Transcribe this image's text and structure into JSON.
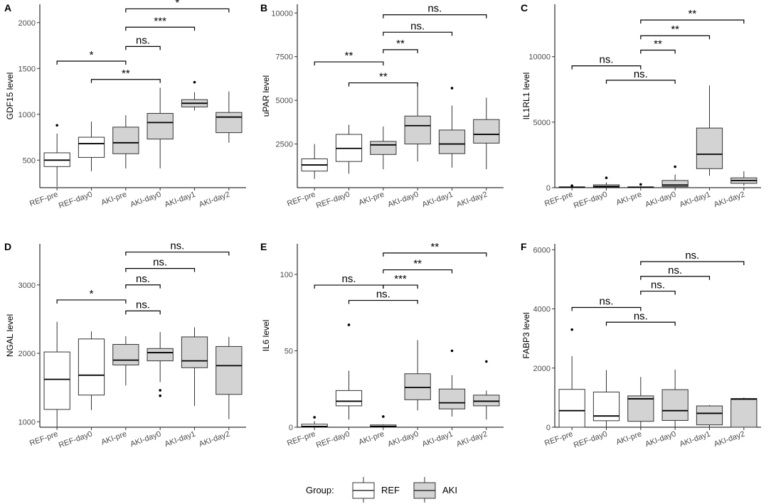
{
  "legend": {
    "title": "Group:",
    "items": [
      {
        "label": "REF",
        "fill": "#ffffff"
      },
      {
        "label": "AKI",
        "fill": "#d3d3d3"
      }
    ]
  },
  "colors": {
    "REF": "#ffffff",
    "AKI": "#d3d3d3",
    "line": "#333333"
  },
  "chart_data": [
    {
      "panel": "A",
      "type": "boxplot",
      "ylabel": "GDF15 level",
      "categories": [
        "REF-pre",
        "REF-day0",
        "AKI-pre",
        "AKI-day0",
        "AKI-day1",
        "AKI-day2"
      ],
      "groups": [
        "REF",
        "REF",
        "AKI",
        "AKI",
        "AKI",
        "AKI"
      ],
      "ylim": [
        200,
        2200
      ],
      "yticks": [
        500,
        1000,
        1500,
        2000
      ],
      "boxes": [
        {
          "min": 210,
          "q1": 430,
          "median": 500,
          "q3": 580,
          "max": 790,
          "outliers": [
            880
          ]
        },
        {
          "min": 380,
          "q1": 530,
          "median": 680,
          "q3": 750,
          "max": 920,
          "outliers": []
        },
        {
          "min": 410,
          "q1": 570,
          "median": 690,
          "q3": 860,
          "max": 990,
          "outliers": []
        },
        {
          "min": 410,
          "q1": 730,
          "median": 910,
          "q3": 1010,
          "max": 1290,
          "outliers": []
        },
        {
          "min": 1040,
          "q1": 1080,
          "median": 1120,
          "q3": 1160,
          "max": 1240,
          "outliers": [
            1350
          ]
        },
        {
          "min": 690,
          "q1": 800,
          "median": 970,
          "q3": 1020,
          "max": 1250,
          "outliers": []
        }
      ],
      "comparisons": [
        {
          "from": 0,
          "to": 2,
          "y": 1580,
          "label": "*"
        },
        {
          "from": 1,
          "to": 3,
          "y": 1380,
          "label": "**"
        },
        {
          "from": 2,
          "to": 3,
          "y": 1740,
          "label": "ns."
        },
        {
          "from": 2,
          "to": 4,
          "y": 1950,
          "label": "***"
        },
        {
          "from": 2,
          "to": 5,
          "y": 2150,
          "label": "*"
        }
      ]
    },
    {
      "panel": "B",
      "type": "boxplot",
      "ylabel": "uPAR level",
      "categories": [
        "REF-pre",
        "REF-day0",
        "AKI-pre",
        "AKI-day0",
        "AKI-day1",
        "AKI-day2"
      ],
      "groups": [
        "REF",
        "REF",
        "AKI",
        "AKI",
        "AKI",
        "AKI"
      ],
      "ylim": [
        0,
        10500
      ],
      "yticks": [
        2500,
        5000,
        7500,
        10000
      ],
      "boxes": [
        {
          "min": 500,
          "q1": 950,
          "median": 1300,
          "q3": 1650,
          "max": 2500,
          "outliers": []
        },
        {
          "min": 800,
          "q1": 1500,
          "median": 2250,
          "q3": 3050,
          "max": 3600,
          "outliers": []
        },
        {
          "min": 1050,
          "q1": 1900,
          "median": 2450,
          "q3": 2650,
          "max": 3500,
          "outliers": []
        },
        {
          "min": 1500,
          "q1": 2500,
          "median": 3550,
          "q3": 4100,
          "max": 6000,
          "outliers": []
        },
        {
          "min": 1150,
          "q1": 1950,
          "median": 2500,
          "q3": 3300,
          "max": 4700,
          "outliers": [
            5700
          ]
        },
        {
          "min": 1050,
          "q1": 2550,
          "median": 3050,
          "q3": 3900,
          "max": 5150,
          "outliers": []
        }
      ],
      "comparisons": [
        {
          "from": 0,
          "to": 2,
          "y": 7200,
          "label": "**"
        },
        {
          "from": 1,
          "to": 3,
          "y": 6000,
          "label": "**"
        },
        {
          "from": 2,
          "to": 3,
          "y": 7900,
          "label": "**"
        },
        {
          "from": 2,
          "to": 4,
          "y": 8900,
          "label": "ns."
        },
        {
          "from": 2,
          "to": 5,
          "y": 9900,
          "label": "ns."
        }
      ]
    },
    {
      "panel": "C",
      "type": "boxplot",
      "ylabel": "IL1RL1 level",
      "categories": [
        "REF-pre",
        "REF-day0",
        "AKI-pre",
        "AKI-day0",
        "AKI-day1",
        "AKI-day2"
      ],
      "groups": [
        "REF",
        "REF",
        "AKI",
        "AKI",
        "AKI",
        "AKI"
      ],
      "ylim": [
        0,
        14000
      ],
      "yticks": [
        0,
        5000,
        10000
      ],
      "boxes": [
        {
          "min": 0,
          "q1": 10,
          "median": 30,
          "q3": 60,
          "max": 100,
          "outliers": [
            150
          ]
        },
        {
          "min": 0,
          "q1": 50,
          "median": 100,
          "q3": 220,
          "max": 400,
          "outliers": [
            750
          ]
        },
        {
          "min": 0,
          "q1": 10,
          "median": 30,
          "q3": 60,
          "max": 120,
          "outliers": [
            250
          ]
        },
        {
          "min": 0,
          "q1": 80,
          "median": 200,
          "q3": 550,
          "max": 1000,
          "outliers": [
            1600
          ]
        },
        {
          "min": 900,
          "q1": 1450,
          "median": 2550,
          "q3": 4550,
          "max": 7800,
          "outliers": []
        },
        {
          "min": 150,
          "q1": 330,
          "median": 550,
          "q3": 750,
          "max": 1250,
          "outliers": []
        }
      ],
      "comparisons": [
        {
          "from": 0,
          "to": 2,
          "y": 9300,
          "label": "ns."
        },
        {
          "from": 1,
          "to": 3,
          "y": 8200,
          "label": "ns."
        },
        {
          "from": 2,
          "to": 3,
          "y": 10500,
          "label": "**"
        },
        {
          "from": 2,
          "to": 4,
          "y": 11600,
          "label": "**"
        },
        {
          "from": 2,
          "to": 5,
          "y": 12800,
          "label": "**"
        }
      ]
    },
    {
      "panel": "D",
      "type": "boxplot",
      "ylabel": "NGAL level",
      "categories": [
        "REF-pre",
        "REF-day0",
        "AKI-pre",
        "AKI-day0",
        "AKI-day1",
        "AKI-day2"
      ],
      "groups": [
        "REF",
        "REF",
        "AKI",
        "AKI",
        "AKI",
        "AKI"
      ],
      "ylim": [
        920,
        3600
      ],
      "yticks": [
        1000,
        2000,
        3000
      ],
      "boxes": [
        {
          "min": 920,
          "q1": 1180,
          "median": 1620,
          "q3": 2020,
          "max": 2460,
          "outliers": []
        },
        {
          "min": 1170,
          "q1": 1390,
          "median": 1680,
          "q3": 2210,
          "max": 2320,
          "outliers": []
        },
        {
          "min": 1530,
          "q1": 1830,
          "median": 1900,
          "q3": 2130,
          "max": 2250,
          "outliers": []
        },
        {
          "min": 1580,
          "q1": 1890,
          "median": 2010,
          "q3": 2070,
          "max": 2310,
          "outliers": [
            1460,
            1380
          ]
        },
        {
          "min": 1230,
          "q1": 1790,
          "median": 1890,
          "q3": 2240,
          "max": 2380,
          "outliers": []
        },
        {
          "min": 1040,
          "q1": 1400,
          "median": 1820,
          "q3": 2100,
          "max": 2240,
          "outliers": []
        }
      ],
      "comparisons": [
        {
          "from": 0,
          "to": 2,
          "y": 2780,
          "label": "*"
        },
        {
          "from": 2,
          "to": 3,
          "y": 2620,
          "label": "ns."
        },
        {
          "from": 2,
          "to": 3,
          "y": 3000,
          "label": "ns."
        },
        {
          "from": 2,
          "to": 4,
          "y": 3240,
          "label": "ns."
        },
        {
          "from": 2,
          "to": 5,
          "y": 3480,
          "label": "ns."
        }
      ]
    },
    {
      "panel": "E",
      "type": "boxplot",
      "ylabel": "IL6 level",
      "categories": [
        "REF-pre",
        "REF-day0",
        "AKI-pre",
        "AKI-day0",
        "AKI-day1",
        "AKI-day2"
      ],
      "groups": [
        "REF",
        "REF",
        "AKI",
        "AKI",
        "AKI",
        "AKI"
      ],
      "ylim": [
        0,
        120
      ],
      "yticks": [
        0,
        50,
        100
      ],
      "boxes": [
        {
          "min": 0,
          "q1": 0,
          "median": 0.5,
          "q3": 2,
          "max": 4,
          "outliers": [
            6.5
          ]
        },
        {
          "min": 5,
          "q1": 14,
          "median": 17,
          "q3": 24,
          "max": 37,
          "outliers": [
            67
          ]
        },
        {
          "min": 0,
          "q1": 0,
          "median": 0.5,
          "q3": 1.5,
          "max": 2,
          "outliers": [
            7
          ]
        },
        {
          "min": 11,
          "q1": 18,
          "median": 26,
          "q3": 35,
          "max": 57,
          "outliers": []
        },
        {
          "min": 7,
          "q1": 12,
          "median": 16,
          "q3": 25,
          "max": 34,
          "outliers": [
            50
          ]
        },
        {
          "min": 5,
          "q1": 14,
          "median": 17,
          "q3": 21,
          "max": 24,
          "outliers": [
            43
          ]
        }
      ],
      "comparisons": [
        {
          "from": 0,
          "to": 2,
          "y": 93,
          "label": "ns."
        },
        {
          "from": 1,
          "to": 3,
          "y": 83,
          "label": "ns."
        },
        {
          "from": 2,
          "to": 3,
          "y": 93,
          "label": "***"
        },
        {
          "from": 2,
          "to": 4,
          "y": 103,
          "label": "**"
        },
        {
          "from": 2,
          "to": 5,
          "y": 114,
          "label": "**"
        }
      ]
    },
    {
      "panel": "F",
      "type": "boxplot",
      "ylabel": "FABP3 level",
      "categories": [
        "REF-pre",
        "REF-day0",
        "AKI-pre",
        "AKI-day0",
        "AKI-day1",
        "AKI-day2"
      ],
      "groups": [
        "REF",
        "REF",
        "AKI",
        "AKI",
        "AKI",
        "AKI"
      ],
      "ylim": [
        0,
        6200
      ],
      "yticks": [
        0,
        2000,
        4000,
        6000
      ],
      "boxes": [
        {
          "min": 0,
          "q1": 0,
          "median": 560,
          "q3": 1280,
          "max": 2400,
          "outliers": [
            3300
          ]
        },
        {
          "min": 0,
          "q1": 220,
          "median": 380,
          "q3": 1190,
          "max": 1930,
          "outliers": []
        },
        {
          "min": 0,
          "q1": 200,
          "median": 960,
          "q3": 1060,
          "max": 1700,
          "outliers": []
        },
        {
          "min": 0,
          "q1": 230,
          "median": 560,
          "q3": 1270,
          "max": 1950,
          "outliers": []
        },
        {
          "min": 0,
          "q1": 80,
          "median": 470,
          "q3": 720,
          "max": 750,
          "outliers": []
        },
        {
          "min": 0,
          "q1": 0,
          "median": 950,
          "q3": 970,
          "max": 1000,
          "outliers": []
        }
      ],
      "comparisons": [
        {
          "from": 0,
          "to": 2,
          "y": 4050,
          "label": "ns."
        },
        {
          "from": 1,
          "to": 3,
          "y": 3550,
          "label": "ns."
        },
        {
          "from": 2,
          "to": 3,
          "y": 4600,
          "label": "ns."
        },
        {
          "from": 2,
          "to": 4,
          "y": 5100,
          "label": "ns."
        },
        {
          "from": 2,
          "to": 5,
          "y": 5600,
          "label": "ns."
        }
      ]
    }
  ]
}
